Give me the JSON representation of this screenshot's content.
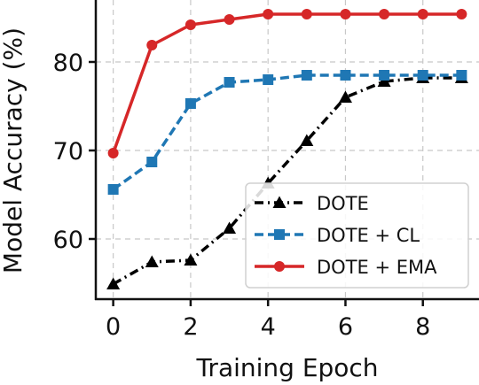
{
  "chart_data": {
    "type": "line",
    "xlabel": "Training Epoch",
    "ylabel": "Model Accuracy (%)",
    "xlim": [
      -0.45,
      9.45
    ],
    "ylim": [
      53.2,
      87
    ],
    "xticks": [
      0,
      2,
      4,
      6,
      8
    ],
    "yticks": [
      60,
      70,
      80
    ],
    "grid": true,
    "legend_position": "lower-right",
    "x": [
      0,
      1,
      2,
      3,
      4,
      5,
      6,
      7,
      8,
      9
    ],
    "series": [
      {
        "name": "DOTE",
        "color": "#000000",
        "marker": "triangle",
        "linestyle": "dashdot",
        "values": [
          54.9,
          57.4,
          57.6,
          61.2,
          66.3,
          71.1,
          76.0,
          77.8,
          78.2,
          78.2
        ]
      },
      {
        "name": "DOTE + CL",
        "color": "#1f77b4",
        "marker": "square",
        "linestyle": "dashed",
        "values": [
          65.6,
          68.7,
          75.3,
          77.7,
          78.0,
          78.5,
          78.5,
          78.5,
          78.5,
          78.5
        ]
      },
      {
        "name": "DOTE + EMA",
        "color": "#d62728",
        "marker": "circle",
        "linestyle": "solid",
        "values": [
          69.7,
          81.9,
          84.2,
          84.8,
          85.4,
          85.4,
          85.4,
          85.4,
          85.4,
          85.4
        ]
      }
    ]
  }
}
